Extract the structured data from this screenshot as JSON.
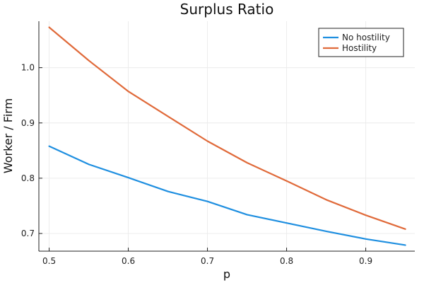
{
  "chart_data": {
    "type": "line",
    "title": "Surplus Ratio",
    "xlabel": "p",
    "ylabel": "Worker / Firm",
    "x": [
      0.5,
      0.55,
      0.6,
      0.65,
      0.7,
      0.75,
      0.8,
      0.85,
      0.9,
      0.95
    ],
    "xticks": [
      "0.5",
      "0.6",
      "0.7",
      "0.8",
      "0.9"
    ],
    "yticks": [
      "0.7",
      "0.8",
      "0.9",
      "1.0"
    ],
    "xlim": [
      0.487,
      0.962
    ],
    "ylim": [
      0.668,
      1.084
    ],
    "grid": true,
    "legend_position": "top-right",
    "series": [
      {
        "name": "No hostility",
        "color": "#1f8fe0",
        "values": [
          0.858,
          0.825,
          0.801,
          0.776,
          0.758,
          0.734,
          0.719,
          0.704,
          0.69,
          0.679
        ]
      },
      {
        "name": "Hostility",
        "color": "#e06a3a",
        "values": [
          1.073,
          1.013,
          0.957,
          0.912,
          0.867,
          0.828,
          0.795,
          0.761,
          0.733,
          0.708
        ]
      }
    ]
  }
}
